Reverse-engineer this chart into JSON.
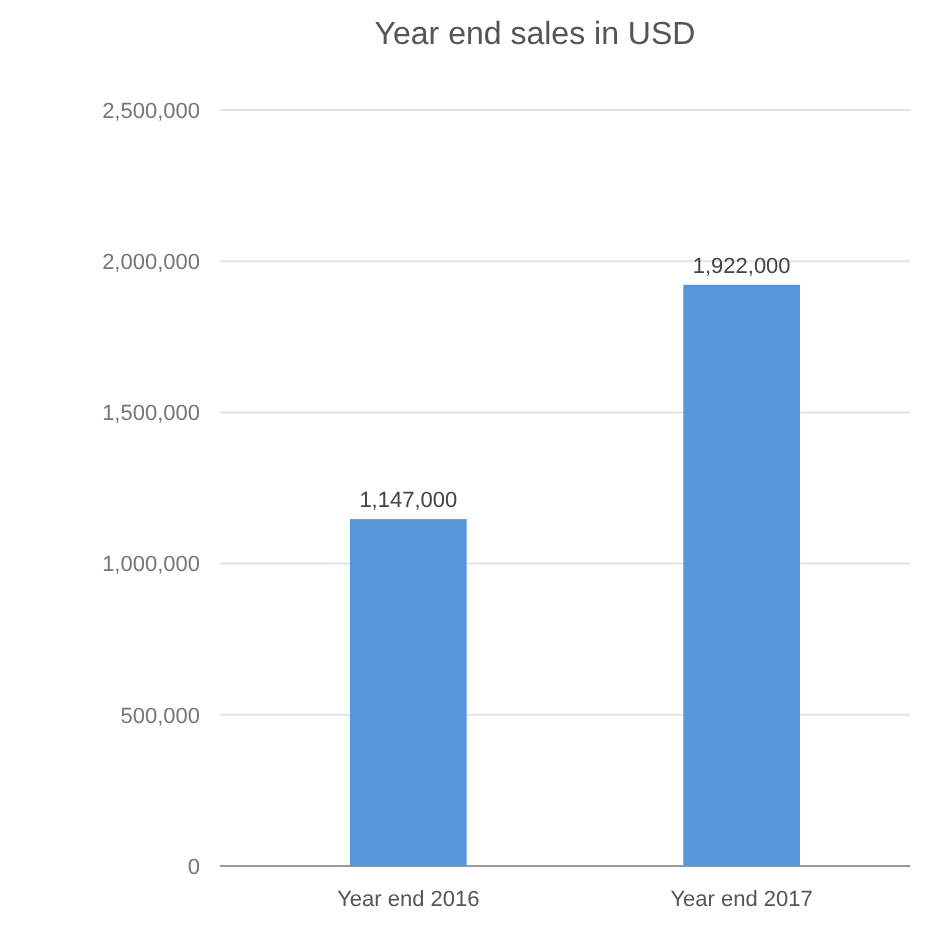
{
  "chart_data": {
    "type": "bar",
    "title": "Year end sales in USD",
    "categories": [
      "Year end 2016",
      "Year end 2017"
    ],
    "values": [
      1147000,
      1922000
    ],
    "color": "#5597d8",
    "ylim": [
      0,
      2500000
    ],
    "yticks": [
      {
        "value": 0,
        "label": "0"
      },
      {
        "value": 500000,
        "label": "500,000"
      },
      {
        "value": 1000000,
        "label": "1,000,000"
      },
      {
        "value": 1500000,
        "label": "1,500,000"
      },
      {
        "value": 2000000,
        "label": "2,000,000"
      },
      {
        "value": 2500000,
        "label": "2,500,000"
      }
    ],
    "grid": true,
    "value_labels": [
      "1,147,000",
      "1,922,000"
    ]
  }
}
